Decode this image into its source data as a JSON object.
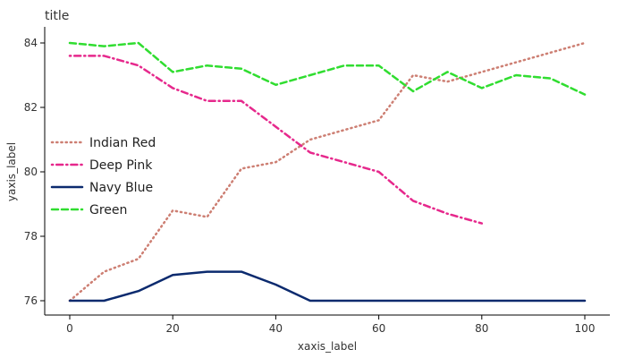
{
  "chart_data": {
    "type": "line",
    "title": "title",
    "xlabel": "xaxis_label",
    "ylabel": "yaxis_label",
    "xlim": [
      0,
      100
    ],
    "ylim": [
      76,
      84
    ],
    "xticks": [
      0,
      20,
      40,
      60,
      80,
      100
    ],
    "yticks": [
      76,
      78,
      80,
      82,
      84
    ],
    "legend_position": "left",
    "grid": false,
    "series": [
      {
        "name": "Indian Red",
        "color": "#cd7f73",
        "dash": "dotted",
        "x": [
          0,
          6.67,
          13.33,
          20,
          26.67,
          33.33,
          40,
          46.67,
          53.33,
          60,
          66.67,
          73.33,
          80,
          86.67,
          93.33,
          100
        ],
        "y": [
          76.0,
          76.9,
          77.3,
          78.8,
          78.6,
          80.1,
          80.3,
          81.0,
          81.3,
          81.6,
          83.0,
          82.8,
          83.1,
          83.4,
          83.7,
          84.0
        ]
      },
      {
        "name": "Deep Pink",
        "color": "#e6288c",
        "dash": "dotdash",
        "x": [
          0,
          6.67,
          13.33,
          20,
          26.67,
          33.33,
          40,
          46.67,
          53.33,
          60,
          66.67,
          73.33,
          80
        ],
        "y": [
          83.6,
          83.6,
          83.3,
          82.6,
          82.2,
          82.2,
          81.4,
          80.6,
          80.3,
          80.0,
          79.1,
          78.7,
          78.4
        ]
      },
      {
        "name": "Navy Blue",
        "color": "#0b2a6e",
        "dash": "solid",
        "x": [
          0,
          6.67,
          13.33,
          20,
          26.67,
          33.33,
          40,
          46.67,
          53.33,
          60,
          66.67,
          73.33,
          80,
          86.67,
          93.33,
          100
        ],
        "y": [
          76.0,
          76.0,
          76.3,
          76.8,
          76.9,
          76.9,
          76.5,
          76.0,
          76.0,
          76.0,
          76.0,
          76.0,
          76.0,
          76.0,
          76.0,
          76.0
        ]
      },
      {
        "name": "Green",
        "color": "#30dd30",
        "dash": "dashed",
        "x": [
          0,
          6.67,
          13.33,
          20,
          26.67,
          33.33,
          40,
          46.67,
          53.33,
          60,
          66.67,
          73.33,
          80,
          86.67,
          93.33,
          100
        ],
        "y": [
          84.0,
          83.9,
          84.0,
          83.1,
          83.3,
          83.2,
          82.7,
          83.0,
          83.3,
          83.3,
          82.5,
          83.1,
          82.6,
          83.0,
          82.9,
          82.4
        ]
      }
    ]
  }
}
